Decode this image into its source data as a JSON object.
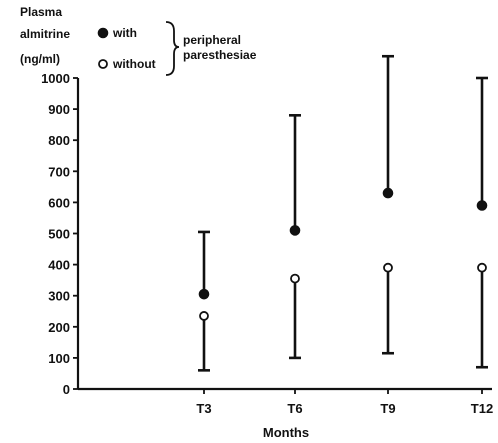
{
  "chart_data": {
    "type": "scatter",
    "y_title_lines": [
      "Plasma",
      "almitrine",
      "(ng/ml)"
    ],
    "xlabel": "Months",
    "categories": [
      "T3",
      "T6",
      "T9",
      "T12"
    ],
    "ylim": [
      0,
      1000
    ],
    "yticks": [
      0,
      100,
      200,
      300,
      400,
      500,
      600,
      700,
      800,
      900,
      1000
    ],
    "grid": false,
    "legend": {
      "position": "top-left",
      "entries": [
        {
          "marker": "filled-circle",
          "label": "with"
        },
        {
          "marker": "open-circle",
          "label": "without"
        }
      ],
      "group_label_lines": [
        "peripheral",
        "paresthesiae"
      ]
    },
    "series": [
      {
        "name": "with",
        "marker": "filled-circle",
        "values": [
          305,
          510,
          630,
          590
        ],
        "error_bar": "upper",
        "error_to": [
          505,
          880,
          1070,
          1000
        ]
      },
      {
        "name": "without",
        "marker": "open-circle",
        "values": [
          235,
          355,
          390,
          390
        ],
        "error_bar": "lower",
        "error_to": [
          60,
          100,
          115,
          70
        ]
      }
    ]
  }
}
